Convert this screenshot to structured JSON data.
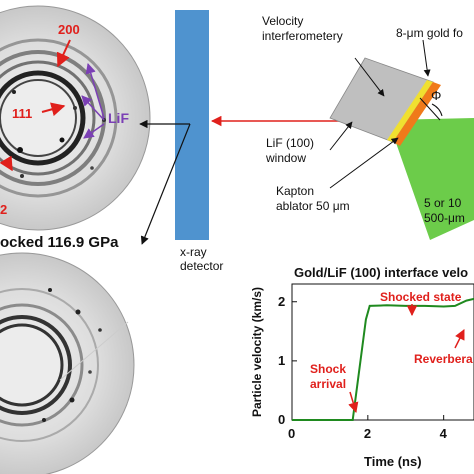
{
  "top_pattern": {
    "label_200": "200",
    "label_111": "111",
    "label_lif": "LiF",
    "label_edge": "2"
  },
  "shock_caption": "ocked 116.9 GPa",
  "detector": {
    "line1": "x-ray",
    "line2": "detector"
  },
  "target": {
    "velocity_line1": "Velocity",
    "velocity_line2": "interferometery",
    "gold_label": "8-μm gold fo",
    "phi": "Φ",
    "lif_line1": "LiF (100)",
    "lif_line2": "window",
    "kapton_line1": "Kapton",
    "kapton_line2": "ablator 50 μm",
    "beam_line1": "5 or 10",
    "beam_line2": "500-μm"
  },
  "chart_data": {
    "type": "line",
    "title": "Gold/LiF (100) interface velo",
    "xlabel": "Time (ns)",
    "ylabel": "Particle velocity (km/s)",
    "xlim": [
      0,
      4.8
    ],
    "ylim": [
      0,
      2.3
    ],
    "xticks": [
      "0",
      "2",
      "4"
    ],
    "yticks": [
      "0",
      "1",
      "2"
    ],
    "series": [
      {
        "color": "#1f8a1f",
        "x": [
          0,
          1.0,
          1.6,
          1.95,
          2.05,
          2.5,
          3.0,
          3.5,
          4.0,
          4.3,
          4.6,
          4.8
        ],
        "y": [
          0,
          0,
          0,
          1.7,
          1.93,
          1.94,
          1.93,
          1.93,
          1.92,
          1.93,
          2.02,
          2.05
        ]
      }
    ],
    "annotations": [
      {
        "text": "Shocked state",
        "x": 3.2,
        "y": 1.93
      },
      {
        "text": "Shock",
        "x": 1.6,
        "y": 0
      },
      {
        "text": "arrival",
        "x": 1.6,
        "y": 0
      },
      {
        "text": "Reverbera",
        "x": 4.4,
        "y": 2.0
      }
    ]
  }
}
